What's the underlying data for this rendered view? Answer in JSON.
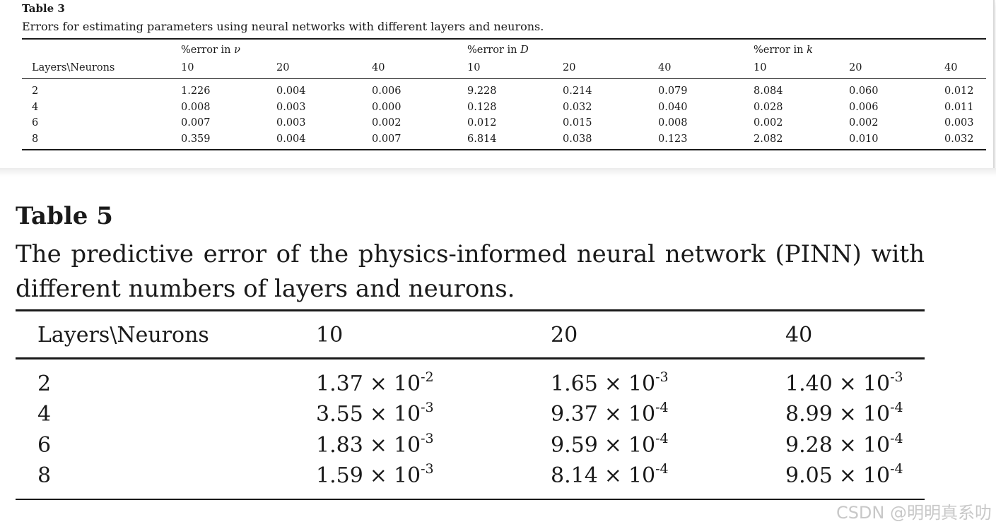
{
  "table3": {
    "label": "Table 3",
    "caption": "Errors for estimating parameters using neural networks with different layers and neurons.",
    "row_header": "Layers\\Neurons",
    "groups": [
      {
        "prefix": "%error in ",
        "symbol": "ν"
      },
      {
        "prefix": "%error in ",
        "symbol": "D"
      },
      {
        "prefix": "%error in ",
        "symbol": "k"
      }
    ],
    "neurons": [
      "10",
      "20",
      "40",
      "10",
      "20",
      "40",
      "10",
      "20",
      "40"
    ],
    "rows": [
      {
        "layers": "2",
        "values": [
          "1.226",
          "0.004",
          "0.006",
          "9.228",
          "0.214",
          "0.079",
          "8.084",
          "0.060",
          "0.012"
        ]
      },
      {
        "layers": "4",
        "values": [
          "0.008",
          "0.003",
          "0.000",
          "0.128",
          "0.032",
          "0.040",
          "0.028",
          "0.006",
          "0.011"
        ]
      },
      {
        "layers": "6",
        "values": [
          "0.007",
          "0.003",
          "0.002",
          "0.012",
          "0.015",
          "0.008",
          "0.002",
          "0.002",
          "0.003"
        ]
      },
      {
        "layers": "8",
        "values": [
          "0.359",
          "0.004",
          "0.007",
          "6.814",
          "0.038",
          "0.123",
          "2.082",
          "0.010",
          "0.032"
        ]
      }
    ]
  },
  "table5": {
    "label": "Table 5",
    "caption": "The predictive error of the physics-informed neural network (PINN) with different numbers of layers and neurons.",
    "row_header": "Layers\\Neurons",
    "neurons": [
      "10",
      "20",
      "40"
    ],
    "times": "×",
    "rows": [
      {
        "layers": "2",
        "values": [
          {
            "m": "1.37",
            "base": "10",
            "exp": "-2"
          },
          {
            "m": "1.65",
            "base": "10",
            "exp": "-3"
          },
          {
            "m": "1.40",
            "base": "10",
            "exp": "-3"
          }
        ]
      },
      {
        "layers": "4",
        "values": [
          {
            "m": "3.55",
            "base": "10",
            "exp": "-3"
          },
          {
            "m": "9.37",
            "base": "10",
            "exp": "-4"
          },
          {
            "m": "8.99",
            "base": "10",
            "exp": "-4"
          }
        ]
      },
      {
        "layers": "6",
        "values": [
          {
            "m": "1.83",
            "base": "10",
            "exp": "-3"
          },
          {
            "m": "9.59",
            "base": "10",
            "exp": "-4"
          },
          {
            "m": "9.28",
            "base": "10",
            "exp": "-4"
          }
        ]
      },
      {
        "layers": "8",
        "values": [
          {
            "m": "1.59",
            "base": "10",
            "exp": "-3"
          },
          {
            "m": "8.14",
            "base": "10",
            "exp": "-4"
          },
          {
            "m": "9.05",
            "base": "10",
            "exp": "-4"
          }
        ]
      }
    ]
  },
  "watermark": "CSDN @明明真系叻"
}
